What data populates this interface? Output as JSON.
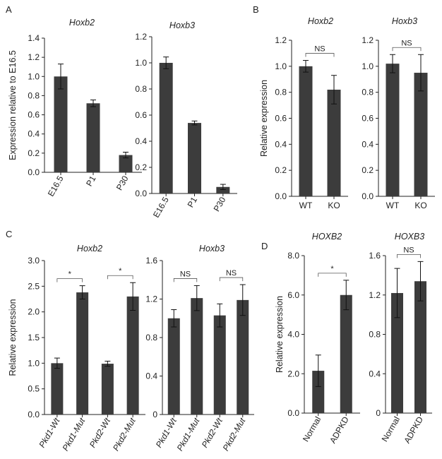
{
  "figure": {
    "panel_letters": [
      "A",
      "B",
      "C",
      "D"
    ]
  },
  "chart_data": [
    {
      "type": "bar",
      "panel": "A",
      "title": "Hoxb2",
      "ylabel": "Expression relative to E16.5",
      "categories": [
        "E16.5",
        "P1",
        "P30"
      ],
      "values": [
        1.0,
        0.72,
        0.18
      ],
      "errors": [
        0.13,
        0.035,
        0.03
      ],
      "ylim": [
        0,
        1.4
      ],
      "yticks": [
        "0.0",
        "0.2",
        "0.4",
        "0.6",
        "0.8",
        "1.0",
        "1.2",
        "1.4"
      ],
      "xrotated": true,
      "significance": []
    },
    {
      "type": "bar",
      "panel": "A",
      "title": "Hoxb3",
      "ylabel": "",
      "categories": [
        "E16.5",
        "P1",
        "P30"
      ],
      "values": [
        1.0,
        0.54,
        0.05
      ],
      "errors": [
        0.045,
        0.015,
        0.02
      ],
      "ylim": [
        0,
        1.2
      ],
      "yticks": [
        "0.0",
        "0.2",
        "0.4",
        "0.6",
        "0.8",
        "1.0",
        "1.2"
      ],
      "xrotated": true,
      "significance": []
    },
    {
      "type": "bar",
      "panel": "B",
      "title": "Hoxb2",
      "ylabel": "Relative expression",
      "categories": [
        "WT",
        "KO"
      ],
      "values": [
        1.0,
        0.82
      ],
      "errors": [
        0.045,
        0.11
      ],
      "ylim": [
        0,
        1.2
      ],
      "yticks": [
        "0.0",
        "0.2",
        "0.4",
        "0.6",
        "0.8",
        "1.0",
        "1.2"
      ],
      "xrotated": false,
      "significance": [
        {
          "from": 0,
          "to": 1,
          "label": "NS"
        }
      ]
    },
    {
      "type": "bar",
      "panel": "B",
      "title": "Hoxb3",
      "ylabel": "",
      "categories": [
        "WT",
        "KO"
      ],
      "values": [
        1.02,
        0.95
      ],
      "errors": [
        0.07,
        0.14
      ],
      "ylim": [
        0,
        1.2
      ],
      "yticks": [
        "0.0",
        "0.2",
        "0.4",
        "0.6",
        "0.8",
        "1.0",
        "1.2"
      ],
      "xrotated": false,
      "significance": [
        {
          "from": 0,
          "to": 1,
          "label": "NS"
        }
      ]
    },
    {
      "type": "bar",
      "panel": "C",
      "title": "Hoxb2",
      "ylabel": "Relative expression",
      "categories": [
        "Pkd1-Wt",
        "Pkd1-Mut",
        "Pkd2-Wt",
        "Pkd2-Mut"
      ],
      "values": [
        1.0,
        2.38,
        0.99,
        2.3
      ],
      "errors": [
        0.1,
        0.13,
        0.05,
        0.27
      ],
      "ylim": [
        0,
        3.0
      ],
      "yticks": [
        "0.0",
        "0.5",
        "1.0",
        "1.5",
        "2.0",
        "2.5",
        "3.0"
      ],
      "xrotated": true,
      "xitalic_part": true,
      "significance": [
        {
          "from": 0,
          "to": 1,
          "label": "*"
        },
        {
          "from": 2,
          "to": 3,
          "label": "*"
        }
      ]
    },
    {
      "type": "bar",
      "panel": "C",
      "title": "Hoxb3",
      "ylabel": "",
      "categories": [
        "Pkd1-Wt",
        "Pkd1-Mut",
        "Pkd2-Wt",
        "Pkd2-Mut"
      ],
      "values": [
        1.0,
        1.21,
        1.03,
        1.19
      ],
      "errors": [
        0.09,
        0.13,
        0.12,
        0.16
      ],
      "ylim": [
        0,
        1.6
      ],
      "yticks": [
        "0",
        "0.4",
        "0.8",
        "1.2",
        "1.6"
      ],
      "xrotated": true,
      "xitalic_part": true,
      "significance": [
        {
          "from": 0,
          "to": 1,
          "label": "NS"
        },
        {
          "from": 2,
          "to": 3,
          "label": "NS"
        }
      ]
    },
    {
      "type": "bar",
      "panel": "D",
      "title": "HOXB2",
      "ylabel": "Relative expression",
      "categories": [
        "Normal",
        "ADPKD"
      ],
      "values": [
        2.15,
        6.0
      ],
      "errors": [
        0.8,
        0.75
      ],
      "ylim": [
        0,
        8.0
      ],
      "yticks": [
        "0.0",
        "2.0",
        "4.0",
        "6.0",
        "8.0"
      ],
      "xrotated": true,
      "significance": [
        {
          "from": 0,
          "to": 1,
          "label": "*"
        }
      ]
    },
    {
      "type": "bar",
      "panel": "D",
      "title": "HOXB3",
      "ylabel": "",
      "categories": [
        "Normal",
        "ADPKD"
      ],
      "values": [
        1.22,
        1.34
      ],
      "errors": [
        0.25,
        0.2
      ],
      "ylim": [
        0,
        1.6
      ],
      "yticks": [
        "0",
        "0.4",
        "0.8",
        "1.2",
        "1.6"
      ],
      "xrotated": true,
      "significance": [
        {
          "from": 0,
          "to": 1,
          "label": "NS"
        }
      ]
    }
  ]
}
